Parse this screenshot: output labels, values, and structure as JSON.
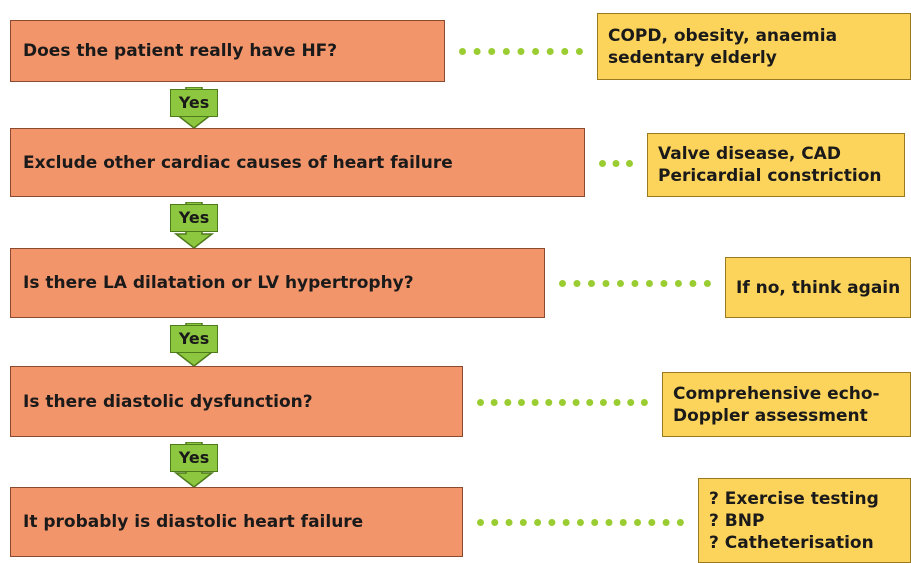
{
  "steps": [
    {
      "label": "Does the patient really have HF?",
      "note": [
        "COPD, obesity, anaemia",
        "sedentary elderly"
      ]
    },
    {
      "label": "Exclude other cardiac causes of heart failure",
      "note": [
        "Valve disease, CAD",
        "Pericardial constriction"
      ]
    },
    {
      "label": "Is there LA dilatation or LV hypertrophy?",
      "note": [
        "If no, think again"
      ]
    },
    {
      "label": "Is there diastolic dysfunction?",
      "note": [
        "Comprehensive echo-",
        "Doppler assessment"
      ]
    },
    {
      "label": "It probably is diastolic heart failure",
      "note": [
        "? Exercise testing",
        "? BNP",
        "? Catheterisation"
      ]
    }
  ],
  "arrows": [
    "Yes",
    "Yes",
    "Yes",
    "Yes"
  ]
}
